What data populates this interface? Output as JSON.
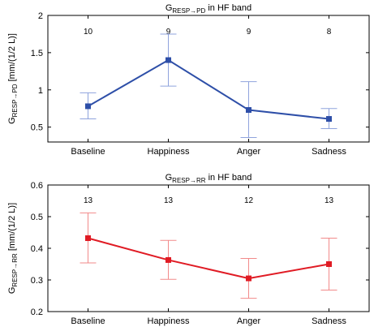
{
  "chart_data": [
    {
      "type": "line",
      "title": {
        "main": "G",
        "sub": "RESP→PD",
        "rest": " in HF band"
      },
      "ylabel": {
        "main": "G",
        "sub": "RESP→PD",
        "rest": " [mm/(1/2 L)]"
      },
      "xlabel": "",
      "categories": [
        "Baseline",
        "Happiness",
        "Anger",
        "Sadness"
      ],
      "series": [
        {
          "values": [
            0.78,
            1.4,
            0.73,
            0.61
          ],
          "error_low": [
            0.61,
            1.05,
            0.36,
            0.48
          ],
          "error_high": [
            0.96,
            1.75,
            1.11,
            0.75
          ],
          "color": "#2e4fa8",
          "error_color": "#8fa3dd"
        }
      ],
      "counts": [
        "10",
        "9",
        "9",
        "8"
      ],
      "ylim": [
        0.3,
        2.0
      ],
      "yticks": [
        0.5,
        1,
        1.5,
        2
      ],
      "ytick_labels": [
        "0.5",
        "1",
        "1.5",
        "2"
      ],
      "grid": false
    },
    {
      "type": "line",
      "title": {
        "main": "G",
        "sub": "RESP→RR",
        "rest": " in HF band"
      },
      "ylabel": {
        "main": "G",
        "sub": "RESP→RR",
        "rest": " [mm/(1/2 L)]"
      },
      "xlabel": "",
      "categories": [
        "Baseline",
        "Happiness",
        "Anger",
        "Sadness"
      ],
      "series": [
        {
          "values": [
            0.432,
            0.363,
            0.305,
            0.35
          ],
          "error_low": [
            0.354,
            0.302,
            0.242,
            0.268
          ],
          "error_high": [
            0.512,
            0.425,
            0.368,
            0.432
          ],
          "color": "#e01b24",
          "error_color": "#f28a8a"
        }
      ],
      "counts": [
        "13",
        "13",
        "12",
        "13"
      ],
      "ylim": [
        0.2,
        0.6
      ],
      "yticks": [
        0.2,
        0.3,
        0.4,
        0.5,
        0.6
      ],
      "ytick_labels": [
        "0.2",
        "0.3",
        "0.4",
        "0.5",
        "0.6"
      ],
      "grid": false
    }
  ]
}
